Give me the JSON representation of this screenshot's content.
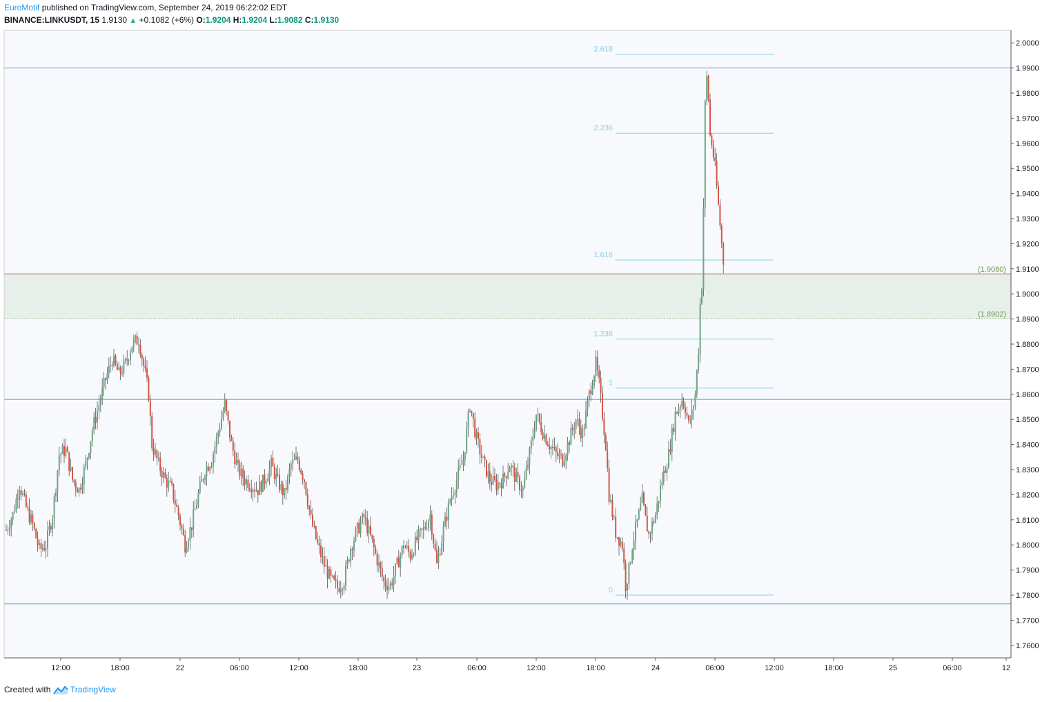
{
  "header": {
    "author": "EuroMotif",
    "published_text": "published on TradingView.com, September 24, 2019 06:22:02 EDT",
    "symbol": "BINANCE:LINKUSDT, 15",
    "last": "1.9130",
    "change": "+0.1082 (+6%)",
    "o_label": "O:",
    "o_value": "1.9204",
    "h_label": "H:",
    "h_value": "1.9204",
    "l_label": "L:",
    "l_value": "1.9082",
    "c_label": "C:",
    "c_value": "1.9130"
  },
  "footer": {
    "created_with": "Created with",
    "brand": "TradingView"
  },
  "colors": {
    "up": "#6ba583",
    "down": "#d75442",
    "fib": "#7fd4e6",
    "hline": "#5b9cc4",
    "zone_fill": "#e7efea",
    "zone_label": "#6f9a48",
    "plot_bg": "#f7f9fd"
  },
  "chart_data": {
    "type": "candlestick",
    "ylim": [
      1.755,
      2.005
    ],
    "y_ticks": [
      "2.0000",
      "1.9900",
      "1.9800",
      "1.9700",
      "1.9600",
      "1.9500",
      "1.9400",
      "1.9300",
      "1.9200",
      "1.9100",
      "1.9000",
      "1.8900",
      "1.8800",
      "1.8700",
      "1.8600",
      "1.8500",
      "1.8400",
      "1.8300",
      "1.8200",
      "1.8100",
      "1.8000",
      "1.7900",
      "1.7800",
      "1.7700",
      "1.7600"
    ],
    "x_ticks": [
      "12:00",
      "18:00",
      "22",
      "06:00",
      "12:00",
      "18:00",
      "23",
      "06:00",
      "12:00",
      "18:00",
      "24",
      "06:00",
      "12:00",
      "18:00",
      "25",
      "06:00",
      "12"
    ],
    "horizontal_lines": [
      1.99,
      1.858,
      1.7765
    ],
    "zone": {
      "top": 1.908,
      "bottom": 1.8902,
      "top_label": "(1.9080)",
      "bottom_label": "(1.8902)"
    },
    "fib_levels": [
      {
        "label": "2.618",
        "price": 1.9955
      },
      {
        "label": "2.236",
        "price": 1.964
      },
      {
        "label": "1.618",
        "price": 1.9135
      },
      {
        "label": "1.236",
        "price": 1.882
      },
      {
        "label": "1",
        "price": 1.8625
      },
      {
        "label": "0",
        "price": 1.78
      }
    ],
    "anchors": [
      [
        0,
        1.806
      ],
      [
        4,
        1.812
      ],
      [
        8,
        1.824
      ],
      [
        12,
        1.815
      ],
      [
        16,
        1.808
      ],
      [
        20,
        1.798
      ],
      [
        24,
        1.8
      ],
      [
        28,
        1.812
      ],
      [
        32,
        1.836
      ],
      [
        36,
        1.838
      ],
      [
        40,
        1.826
      ],
      [
        44,
        1.822
      ],
      [
        48,
        1.832
      ],
      [
        52,
        1.846
      ],
      [
        56,
        1.856
      ],
      [
        60,
        1.866
      ],
      [
        64,
        1.874
      ],
      [
        68,
        1.868
      ],
      [
        72,
        1.872
      ],
      [
        76,
        1.88
      ],
      [
        80,
        1.882
      ],
      [
        84,
        1.868
      ],
      [
        86,
        1.86
      ],
      [
        88,
        1.84
      ],
      [
        92,
        1.832
      ],
      [
        96,
        1.826
      ],
      [
        100,
        1.822
      ],
      [
        104,
        1.812
      ],
      [
        108,
        1.8
      ],
      [
        112,
        1.808
      ],
      [
        116,
        1.82
      ],
      [
        120,
        1.83
      ],
      [
        124,
        1.834
      ],
      [
        128,
        1.845
      ],
      [
        132,
        1.856
      ],
      [
        136,
        1.84
      ],
      [
        140,
        1.83
      ],
      [
        144,
        1.826
      ],
      [
        148,
        1.824
      ],
      [
        152,
        1.822
      ],
      [
        156,
        1.826
      ],
      [
        160,
        1.832
      ],
      [
        164,
        1.825
      ],
      [
        168,
        1.82
      ],
      [
        172,
        1.832
      ],
      [
        176,
        1.834
      ],
      [
        180,
        1.826
      ],
      [
        184,
        1.81
      ],
      [
        188,
        1.8
      ],
      [
        192,
        1.792
      ],
      [
        196,
        1.786
      ],
      [
        200,
        1.783
      ],
      [
        204,
        1.786
      ],
      [
        208,
        1.799
      ],
      [
        212,
        1.806
      ],
      [
        216,
        1.811
      ],
      [
        220,
        1.803
      ],
      [
        224,
        1.794
      ],
      [
        228,
        1.785
      ],
      [
        232,
        1.784
      ],
      [
        236,
        1.792
      ],
      [
        240,
        1.8
      ],
      [
        244,
        1.796
      ],
      [
        248,
        1.802
      ],
      [
        252,
        1.806
      ],
      [
        256,
        1.812
      ],
      [
        260,
        1.792
      ],
      [
        264,
        1.806
      ],
      [
        268,
        1.818
      ],
      [
        272,
        1.826
      ],
      [
        276,
        1.834
      ],
      [
        280,
        1.856
      ],
      [
        284,
        1.842
      ],
      [
        288,
        1.833
      ],
      [
        292,
        1.826
      ],
      [
        296,
        1.824
      ],
      [
        300,
        1.826
      ],
      [
        304,
        1.832
      ],
      [
        308,
        1.826
      ],
      [
        312,
        1.822
      ],
      [
        316,
        1.836
      ],
      [
        320,
        1.852
      ],
      [
        324,
        1.845
      ],
      [
        328,
        1.84
      ],
      [
        332,
        1.836
      ],
      [
        336,
        1.834
      ],
      [
        340,
        1.842
      ],
      [
        344,
        1.85
      ],
      [
        348,
        1.844
      ],
      [
        352,
        1.86
      ],
      [
        356,
        1.872
      ],
      [
        358,
        1.864
      ],
      [
        360,
        1.852
      ],
      [
        362,
        1.84
      ],
      [
        364,
        1.82
      ],
      [
        368,
        1.805
      ],
      [
        372,
        1.8
      ],
      [
        374,
        1.784
      ],
      [
        376,
        1.79
      ],
      [
        378,
        1.8
      ],
      [
        380,
        1.806
      ],
      [
        384,
        1.818
      ],
      [
        386,
        1.81
      ],
      [
        388,
        1.804
      ],
      [
        392,
        1.812
      ],
      [
        396,
        1.826
      ],
      [
        400,
        1.836
      ],
      [
        404,
        1.852
      ],
      [
        408,
        1.858
      ],
      [
        410,
        1.855
      ],
      [
        412,
        1.848
      ],
      [
        414,
        1.852
      ],
      [
        416,
        1.86
      ],
      [
        418,
        1.878
      ],
      [
        419,
        1.896
      ],
      [
        420,
        1.904
      ],
      [
        421,
        1.935
      ],
      [
        422,
        1.975
      ],
      [
        423,
        1.986
      ],
      [
        424,
        1.978
      ],
      [
        425,
        1.963
      ],
      [
        426,
        1.96
      ],
      [
        428,
        1.95
      ],
      [
        430,
        1.935
      ],
      [
        432,
        1.92
      ],
      [
        433,
        1.913
      ]
    ],
    "num_bars": 434
  }
}
